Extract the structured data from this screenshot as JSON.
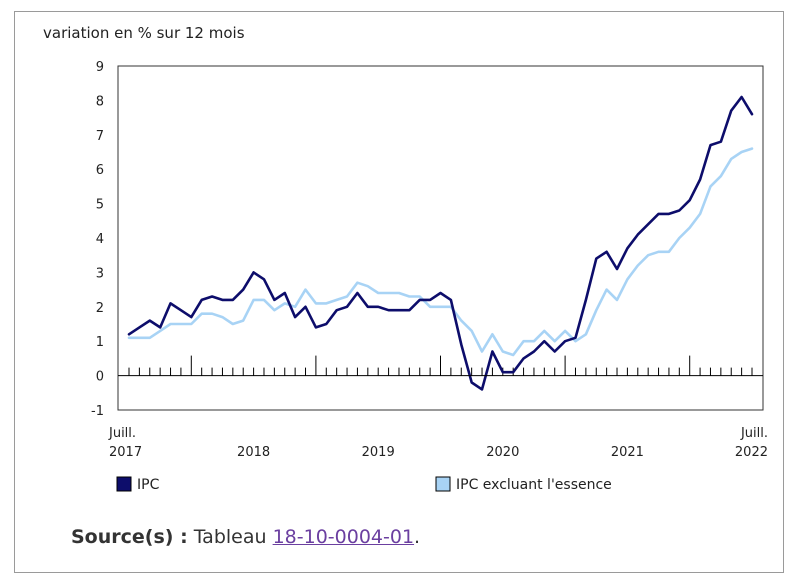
{
  "chart_data": {
    "type": "line",
    "ylabel": "variation en % sur 12 mois",
    "ylim": [
      -1,
      9
    ],
    "yticks": [
      -1,
      0,
      1,
      2,
      3,
      4,
      5,
      6,
      7,
      8,
      9
    ],
    "x_start": "2017-07",
    "x_end": "2022-07",
    "xticklabels": [
      {
        "month": "2017-07",
        "line1": "Juill.",
        "line2": "2017"
      },
      {
        "month": "2018-07",
        "line1": "",
        "line2": "2018"
      },
      {
        "month": "2019-07",
        "line1": "",
        "line2": "2019"
      },
      {
        "month": "2020-07",
        "line1": "",
        "line2": "2020"
      },
      {
        "month": "2021-07",
        "line1": "",
        "line2": "2021"
      },
      {
        "month": "2022-07",
        "line1": "Juill.",
        "line2": "2022"
      }
    ],
    "year_ticks": [
      "2018-01",
      "2019-01",
      "2020-01",
      "2021-01",
      "2022-01"
    ],
    "legend_position": "bottom",
    "series": [
      {
        "name": "IPC",
        "color": "#0d0d6b",
        "values": [
          1.2,
          1.4,
          1.6,
          1.4,
          2.1,
          1.9,
          1.7,
          2.2,
          2.3,
          2.2,
          2.2,
          2.5,
          3.0,
          2.8,
          2.2,
          2.4,
          1.7,
          2.0,
          1.4,
          1.5,
          1.9,
          2.0,
          2.4,
          2.0,
          2.0,
          1.9,
          1.9,
          1.9,
          2.2,
          2.2,
          2.4,
          2.2,
          0.9,
          -0.2,
          -0.4,
          0.7,
          0.1,
          0.1,
          0.5,
          0.7,
          1.0,
          0.7,
          1.0,
          1.1,
          2.2,
          3.4,
          3.6,
          3.1,
          3.7,
          4.1,
          4.4,
          4.7,
          4.7,
          4.8,
          5.1,
          5.7,
          6.7,
          6.8,
          7.7,
          8.1,
          7.6
        ]
      },
      {
        "name": "IPC excluant l'essence",
        "color": "#a8d3f5",
        "values": [
          1.1,
          1.1,
          1.1,
          1.3,
          1.5,
          1.5,
          1.5,
          1.8,
          1.8,
          1.7,
          1.5,
          1.6,
          2.2,
          2.2,
          1.9,
          2.1,
          2.0,
          2.5,
          2.1,
          2.1,
          2.2,
          2.3,
          2.7,
          2.6,
          2.4,
          2.4,
          2.4,
          2.3,
          2.3,
          2.0,
          2.0,
          2.0,
          1.6,
          1.3,
          0.7,
          1.2,
          0.7,
          0.6,
          1.0,
          1.0,
          1.3,
          1.0,
          1.3,
          1.0,
          1.2,
          1.9,
          2.5,
          2.2,
          2.8,
          3.2,
          3.5,
          3.6,
          3.6,
          4.0,
          4.3,
          4.7,
          5.5,
          5.8,
          6.3,
          6.5,
          6.6
        ]
      }
    ]
  },
  "source": {
    "label": "Source(s) :",
    "text": "Tableau",
    "link": "18-10-0004-01",
    "end": "."
  }
}
